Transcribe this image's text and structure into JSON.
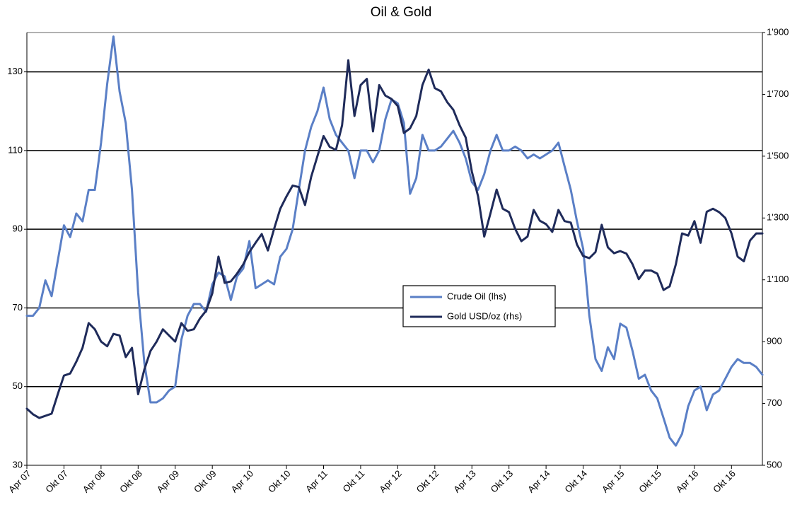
{
  "chart_data": {
    "type": "line",
    "title": "Oil & Gold",
    "categories": [
      "Apr 07",
      null,
      null,
      null,
      null,
      null,
      "Okt 07",
      null,
      null,
      null,
      null,
      null,
      "Apr 08",
      null,
      null,
      null,
      null,
      null,
      "Okt 08",
      null,
      null,
      null,
      null,
      null,
      "Apr 09",
      null,
      null,
      null,
      null,
      null,
      "Okt 09",
      null,
      null,
      null,
      null,
      null,
      "Apr 10",
      null,
      null,
      null,
      null,
      null,
      "Okt 10",
      null,
      null,
      null,
      null,
      null,
      "Apr 11",
      null,
      null,
      null,
      null,
      null,
      "Okt 11",
      null,
      null,
      null,
      null,
      null,
      "Apr 12",
      null,
      null,
      null,
      null,
      null,
      "Okt 12",
      null,
      null,
      null,
      null,
      null,
      "Apr 13",
      null,
      null,
      null,
      null,
      null,
      "Okt 13",
      null,
      null,
      null,
      null,
      null,
      "Apr 14",
      null,
      null,
      null,
      null,
      null,
      "Okt 14",
      null,
      null,
      null,
      null,
      null,
      "Apr 15",
      null,
      null,
      null,
      null,
      null,
      "Okt 15",
      null,
      null,
      null,
      null,
      null,
      "Apr 16",
      null,
      null,
      null,
      null,
      null,
      "Okt 16",
      null,
      null,
      null,
      null,
      null
    ],
    "series": [
      {
        "name": "Crude Oil (lhs)",
        "color": "#5a7fc6",
        "axis": "y",
        "values": [
          68,
          68,
          70,
          77,
          73,
          82,
          91,
          88,
          94,
          92,
          100,
          100,
          112,
          127,
          139,
          125,
          117,
          100,
          74,
          56,
          46,
          46,
          47,
          49,
          50,
          62,
          68,
          71,
          71,
          69,
          76,
          79,
          78,
          72,
          78,
          80,
          87,
          75,
          76,
          77,
          76,
          83,
          85,
          90,
          100,
          110,
          116,
          120,
          126,
          118,
          114,
          112,
          110,
          103,
          110,
          110,
          107,
          110,
          118,
          123,
          122,
          117,
          99,
          103,
          114,
          110,
          110,
          111,
          113,
          115,
          112,
          108,
          102,
          100,
          104,
          110,
          114,
          110,
          110,
          111,
          110,
          108,
          109,
          108,
          109,
          110,
          112,
          106,
          100,
          92,
          85,
          68,
          57,
          54,
          60,
          57,
          66,
          65,
          59,
          52,
          53,
          49,
          47,
          42,
          37,
          35,
          38,
          45,
          49,
          50,
          44,
          48,
          49,
          52,
          55,
          57,
          56,
          56,
          55,
          53
        ]
      },
      {
        "name": "Gold USD/oz (rhs)",
        "color": "#1f2b5a",
        "axis": "y2",
        "values": [
          683,
          665,
          653,
          660,
          667,
          730,
          790,
          797,
          835,
          880,
          960,
          940,
          900,
          885,
          925,
          920,
          850,
          880,
          730,
          810,
          870,
          900,
          940,
          920,
          900,
          960,
          935,
          940,
          975,
          1000,
          1056,
          1175,
          1090,
          1095,
          1120,
          1150,
          1190,
          1220,
          1248,
          1195,
          1265,
          1330,
          1370,
          1405,
          1400,
          1342,
          1433,
          1500,
          1565,
          1530,
          1520,
          1600,
          1810,
          1630,
          1730,
          1750,
          1580,
          1730,
          1696,
          1685,
          1662,
          1575,
          1590,
          1630,
          1730,
          1780,
          1720,
          1710,
          1675,
          1650,
          1600,
          1560,
          1450,
          1370,
          1240,
          1315,
          1392,
          1330,
          1319,
          1265,
          1225,
          1240,
          1326,
          1291,
          1280,
          1255,
          1326,
          1290,
          1285,
          1214,
          1177,
          1170,
          1190,
          1278,
          1205,
          1186,
          1193,
          1185,
          1150,
          1102,
          1130,
          1130,
          1120,
          1067,
          1079,
          1150,
          1250,
          1243,
          1290,
          1220,
          1320,
          1330,
          1319,
          1300,
          1250,
          1175,
          1160,
          1227,
          1250,
          1250
        ]
      }
    ],
    "ylim": [
      30,
      140
    ],
    "yticks": [
      30,
      50,
      70,
      90,
      110,
      130
    ],
    "y2lim": [
      500,
      1900
    ],
    "y2ticks": [
      500,
      700,
      900,
      {
        "value": 1100,
        "label": "1'100"
      },
      {
        "value": 1300,
        "label": "1'300"
      },
      {
        "value": 1500,
        "label": "1'500"
      },
      {
        "value": 1700,
        "label": "1'700"
      },
      {
        "value": 1900,
        "label": "1'900"
      }
    ],
    "grid": true,
    "legend": "center"
  }
}
